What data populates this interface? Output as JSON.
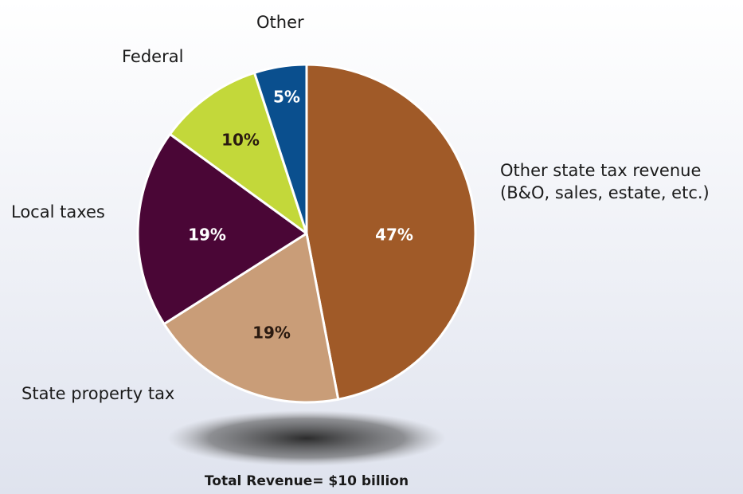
{
  "chart_data": {
    "type": "pie",
    "categories": [
      "Other state tax revenue\n(B&O, sales, estate, etc.)",
      "State property tax",
      "Local taxes",
      "Federal",
      "Other"
    ],
    "values": [
      47,
      19,
      19,
      10,
      5
    ],
    "value_labels": [
      "47%",
      "19%",
      "19%",
      "10%",
      "5%"
    ],
    "colors": [
      "#a05a28",
      "#c99d78",
      "#4a0636",
      "#c3d83a",
      "#0a4f8e"
    ],
    "footnote": "Total Revenue= $10 billion"
  }
}
